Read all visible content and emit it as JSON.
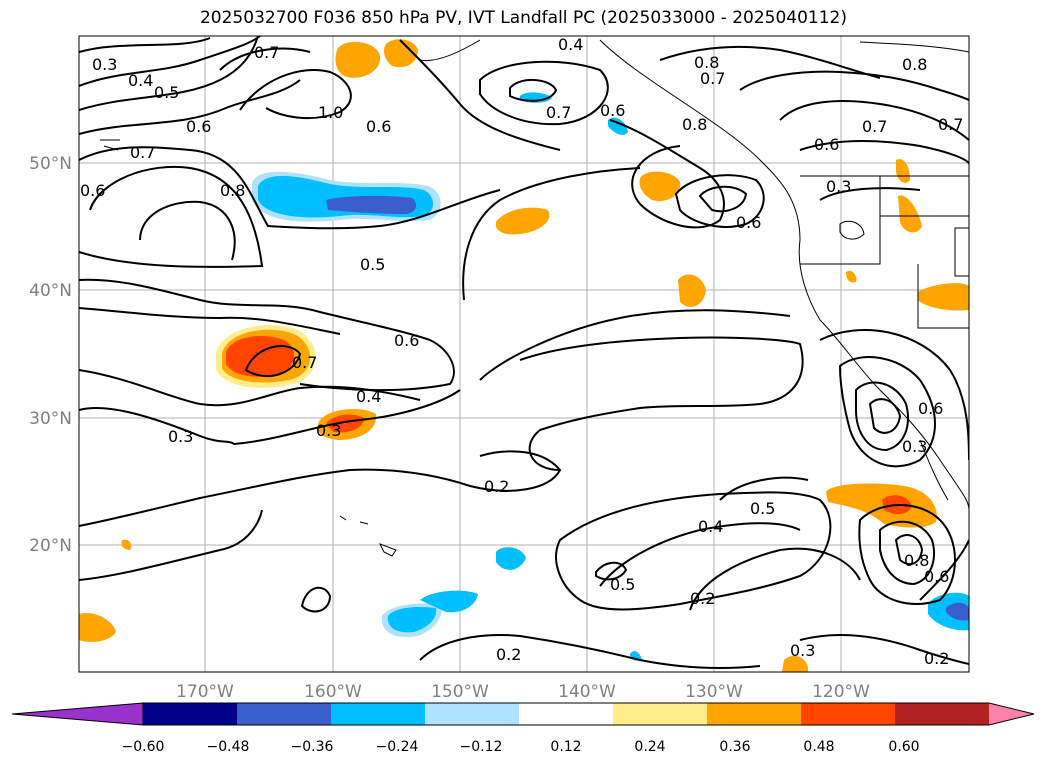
{
  "title": "2025032700 F036 850 hPa PV, IVT Landfall PC (2025033000 - 2025040112)",
  "map": {
    "lon_labels": [
      "170°W",
      "160°W",
      "150°W",
      "140°W",
      "130°W",
      "120°W"
    ],
    "lat_labels": [
      "50°N",
      "40°N",
      "30°N",
      "20°N"
    ],
    "contour_labels": [
      "0.3",
      "0.4",
      "0.5",
      "0.6",
      "0.7",
      "0.8",
      "1.0",
      "0.6",
      "0.7",
      "0.8",
      "0.6",
      "0.4",
      "0.7",
      "0.8",
      "0.7",
      "0.8",
      "0.7",
      "0.8",
      "0.6",
      "0.7",
      "0.6",
      "0.6",
      "0.3",
      "0.5",
      "0.6",
      "0.7",
      "0.4",
      "0.3",
      "0.3",
      "0.2",
      "0.5",
      "0.4",
      "0.5",
      "0.2",
      "0.2",
      "0.3",
      "0.2",
      "0.6",
      "0.8",
      "0.6",
      "0.3"
    ]
  },
  "colorbar": {
    "tick_labels": [
      "−0.60",
      "−0.48",
      "−0.36",
      "−0.24",
      "−0.12",
      "0.12",
      "0.24",
      "0.36",
      "0.48",
      "0.60"
    ],
    "colors": [
      "#9932cc",
      "#00008b",
      "#3a5fcd",
      "#00bfff",
      "#b0e2ff",
      "#ffffff",
      "#ffec8b",
      "#ffa500",
      "#ff4500",
      "#b22222",
      "#ff82ab"
    ]
  }
}
